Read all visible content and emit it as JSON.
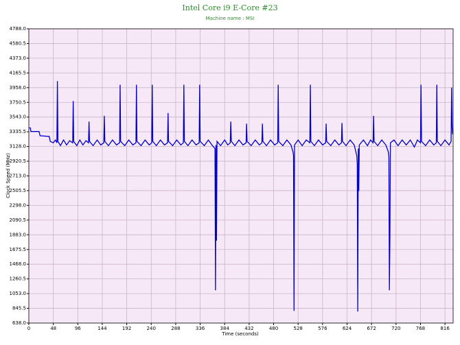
{
  "chart_data": {
    "type": "line",
    "title": "Intel Core i9 E-Core #23",
    "subtitle": "Machine name : MSI",
    "x_label": "Time (seconds)",
    "y_label": "Clock Speed (MHz)",
    "color": "#0000c8",
    "grid": true,
    "xlim": [
      0,
      832
    ],
    "ylim": [
      638,
      4788
    ],
    "xticks": [
      0,
      48,
      96,
      144,
      192,
      240,
      288,
      336,
      384,
      432,
      480,
      528,
      576,
      624,
      672,
      720,
      768,
      816
    ],
    "yticks": [
      {
        "value": 638,
        "label": "638.0"
      },
      845.5,
      {
        "value": 1053,
        "label": "1053.0"
      },
      1260.5,
      {
        "value": 1468,
        "label": "1468.0"
      },
      1675.5,
      {
        "value": 1883,
        "label": "1883.0"
      },
      2090.5,
      {
        "value": 2298,
        "label": "2298.0"
      },
      2505.5,
      {
        "value": 2713,
        "label": "2713.0"
      },
      2920.5,
      {
        "value": 3128,
        "label": "3128.0"
      },
      3335.5,
      {
        "value": 3543,
        "label": "3543.0"
      },
      3750.5,
      {
        "value": 3958,
        "label": "3958.0"
      },
      4165.5,
      {
        "value": 4373,
        "label": "4373.0"
      },
      4580.5,
      {
        "value": 4788,
        "label": "4788.0"
      }
    ],
    "x": [
      0,
      3,
      4,
      20,
      22,
      40,
      42,
      48,
      52,
      55,
      56,
      57,
      62,
      68,
      74,
      80,
      86,
      87,
      88,
      94,
      100,
      106,
      112,
      117,
      118,
      119,
      126,
      134,
      141,
      147,
      148,
      149,
      156,
      164,
      172,
      178,
      179,
      180,
      188,
      196,
      204,
      210,
      211,
      212,
      220,
      228,
      236,
      241,
      242,
      243,
      250,
      258,
      266,
      272,
      273,
      274,
      282,
      290,
      298,
      303,
      304,
      305,
      312,
      320,
      328,
      334,
      335,
      336,
      344,
      352,
      360,
      365,
      366,
      367,
      368,
      369,
      376,
      384,
      390,
      395,
      396,
      397,
      404,
      412,
      420,
      426,
      427,
      428,
      436,
      444,
      452,
      457,
      458,
      459,
      466,
      474,
      482,
      488,
      489,
      490,
      498,
      506,
      514,
      518,
      519,
      520,
      521,
      528,
      536,
      544,
      551,
      552,
      553,
      560,
      568,
      576,
      582,
      583,
      584,
      592,
      600,
      608,
      613,
      614,
      615,
      622,
      630,
      638,
      643,
      644,
      645,
      646,
      647,
      648,
      656,
      664,
      670,
      675,
      676,
      677,
      684,
      692,
      700,
      705,
      706,
      707,
      708,
      709,
      716,
      724,
      732,
      740,
      748,
      756,
      762,
      768,
      769,
      770,
      778,
      786,
      794,
      799,
      800,
      801,
      808,
      816,
      824,
      828,
      829,
      830,
      831
    ],
    "values": [
      3390,
      3390,
      3340,
      3340,
      3280,
      3270,
      3200,
      3180,
      3220,
      3180,
      4050,
      3200,
      3140,
      3220,
      3150,
      3210,
      3180,
      3770,
      3200,
      3140,
      3220,
      3150,
      3210,
      3180,
      3480,
      3200,
      3140,
      3220,
      3150,
      3180,
      3560,
      3200,
      3140,
      3220,
      3150,
      3180,
      4000,
      3200,
      3140,
      3220,
      3150,
      3180,
      4000,
      3200,
      3140,
      3220,
      3150,
      3180,
      4000,
      3200,
      3140,
      3220,
      3150,
      3180,
      3600,
      3200,
      3140,
      3220,
      3150,
      3180,
      4000,
      3200,
      3140,
      3220,
      3150,
      3180,
      4000,
      3200,
      3140,
      3220,
      3140,
      3100,
      1100,
      3150,
      1800,
      3200,
      3140,
      3220,
      3150,
      3180,
      3480,
      3200,
      3140,
      3220,
      3150,
      3180,
      3450,
      3200,
      3140,
      3220,
      3150,
      3180,
      3450,
      3200,
      3140,
      3220,
      3150,
      3180,
      4000,
      3200,
      3140,
      3220,
      3150,
      3050,
      3000,
      810,
      3150,
      3220,
      3140,
      3220,
      3180,
      4000,
      3200,
      3140,
      3220,
      3150,
      3180,
      3450,
      3200,
      3140,
      3220,
      3150,
      3180,
      3460,
      3200,
      3140,
      3220,
      3150,
      3000,
      2880,
      800,
      3100,
      2500,
      3150,
      3220,
      3140,
      3220,
      3180,
      3560,
      3200,
      3140,
      3220,
      3150,
      3050,
      2980,
      1100,
      1800,
      3180,
      3220,
      3140,
      3220,
      3150,
      3220,
      3120,
      3220,
      3180,
      4000,
      3200,
      3140,
      3220,
      3150,
      3180,
      4000,
      3200,
      3140,
      3220,
      3150,
      3200,
      3960,
      3420,
      3300
    ]
  }
}
